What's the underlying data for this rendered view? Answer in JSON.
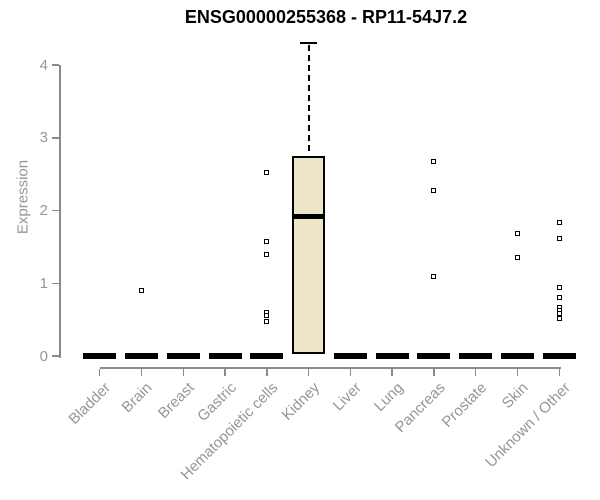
{
  "chart_data": {
    "type": "box",
    "title": "ENSG00000255368 - RP11-54J7.2",
    "ylabel": "Expression",
    "xlabel": "",
    "y_ticks": [
      0,
      1,
      2,
      3,
      4
    ],
    "ylim": [
      0,
      4.35
    ],
    "grid": false,
    "x_label_rotation_deg": 45,
    "categories": [
      "Bladder",
      "Brain",
      "Breast",
      "Gastric",
      "Hematopoietic cells",
      "Kidney",
      "Liver",
      "Lung",
      "Pancreas",
      "Prostate",
      "Skin",
      "Unknown / Other"
    ],
    "boxes": [
      {
        "category": "Bladder",
        "whisker_low": 0,
        "q1": 0,
        "median": 0,
        "q3": 0,
        "whisker_high": 0,
        "outliers": []
      },
      {
        "category": "Brain",
        "whisker_low": 0,
        "q1": 0,
        "median": 0,
        "q3": 0,
        "whisker_high": 0,
        "outliers": [
          0.9
        ]
      },
      {
        "category": "Breast",
        "whisker_low": 0,
        "q1": 0,
        "median": 0,
        "q3": 0,
        "whisker_high": 0,
        "outliers": []
      },
      {
        "category": "Gastric",
        "whisker_low": 0,
        "q1": 0,
        "median": 0,
        "q3": 0,
        "whisker_high": 0,
        "outliers": []
      },
      {
        "category": "Hematopoietic cells",
        "whisker_low": 0,
        "q1": 0,
        "median": 0,
        "q3": 0,
        "whisker_high": 0,
        "outliers": [
          2.52,
          1.57,
          1.4,
          0.6,
          0.55,
          0.48
        ]
      },
      {
        "category": "Kidney",
        "whisker_low": 0.03,
        "q1": 0.03,
        "median": 1.92,
        "q3": 2.75,
        "whisker_high": 4.3,
        "outliers": []
      },
      {
        "category": "Liver",
        "whisker_low": 0,
        "q1": 0,
        "median": 0,
        "q3": 0,
        "whisker_high": 0,
        "outliers": []
      },
      {
        "category": "Lung",
        "whisker_low": 0,
        "q1": 0,
        "median": 0,
        "q3": 0,
        "whisker_high": 0,
        "outliers": []
      },
      {
        "category": "Pancreas",
        "whisker_low": 0,
        "q1": 0,
        "median": 0,
        "q3": 0,
        "whisker_high": 0,
        "outliers": [
          2.67,
          2.27,
          1.09
        ]
      },
      {
        "category": "Prostate",
        "whisker_low": 0,
        "q1": 0,
        "median": 0,
        "q3": 0,
        "whisker_high": 0,
        "outliers": []
      },
      {
        "category": "Skin",
        "whisker_low": 0,
        "q1": 0,
        "median": 0,
        "q3": 0,
        "whisker_high": 0,
        "outliers": [
          1.69,
          1.35
        ]
      },
      {
        "category": "Unknown / Other",
        "whisker_low": 0,
        "q1": 0,
        "median": 0,
        "q3": 0,
        "whisker_high": 0,
        "outliers": [
          1.83,
          1.62,
          0.94,
          0.81,
          0.67,
          0.62,
          0.58,
          0.52
        ]
      }
    ],
    "colors": {
      "box_fill": "#ECE5C9",
      "box_border": "#000000",
      "median": "#000000",
      "whisker": "#000000",
      "outlier_border": "#000000",
      "outlier_fill": "#ffffff",
      "axis_line": "#8A8A8A",
      "tick_label": "#969696",
      "title": "#000000",
      "background": "#ffffff"
    }
  }
}
